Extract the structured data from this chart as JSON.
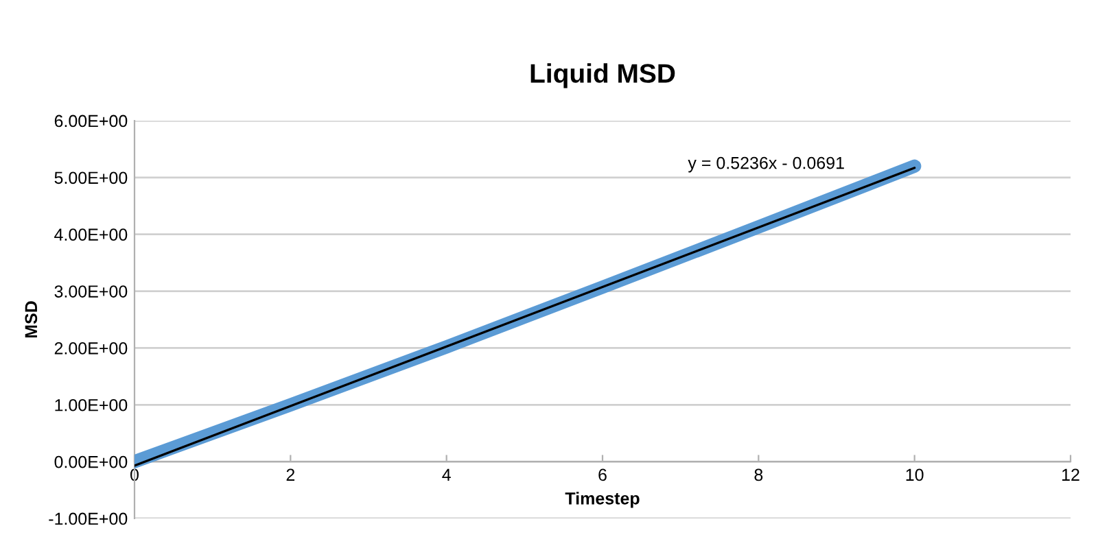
{
  "chart_data": {
    "type": "line",
    "title": "Liquid MSD",
    "xlabel": "Timestep",
    "ylabel": "MSD",
    "series": [
      {
        "color": "#5b9bd5",
        "x": [
          0,
          2,
          4,
          6,
          8,
          10
        ],
        "values": [
          0,
          1.0,
          2.02,
          3.07,
          4.13,
          5.2
        ]
      },
      {
        "color": "#000000",
        "x": [
          0,
          10
        ],
        "values": [
          -0.07,
          5.17
        ]
      }
    ],
    "annotations": [
      "y = 0.5236x - 0.0691"
    ],
    "xlim": [
      0,
      12
    ],
    "xticks": [
      0,
      2,
      4,
      6,
      8,
      10,
      12
    ],
    "ylim": [
      -1,
      6
    ],
    "yticks": [
      {
        "value": -1,
        "label": "-1.00E+00"
      },
      {
        "value": 0,
        "label": "0.00E+00"
      },
      {
        "value": 1,
        "label": "1.00E+00"
      },
      {
        "value": 2,
        "label": "2.00E+00"
      },
      {
        "value": 3,
        "label": "3.00E+00"
      },
      {
        "value": 4,
        "label": "4.00E+00"
      },
      {
        "value": 5,
        "label": "5.00E+00"
      },
      {
        "value": 6,
        "label": "6.00E+00"
      }
    ],
    "grid": "y",
    "legend": false
  }
}
